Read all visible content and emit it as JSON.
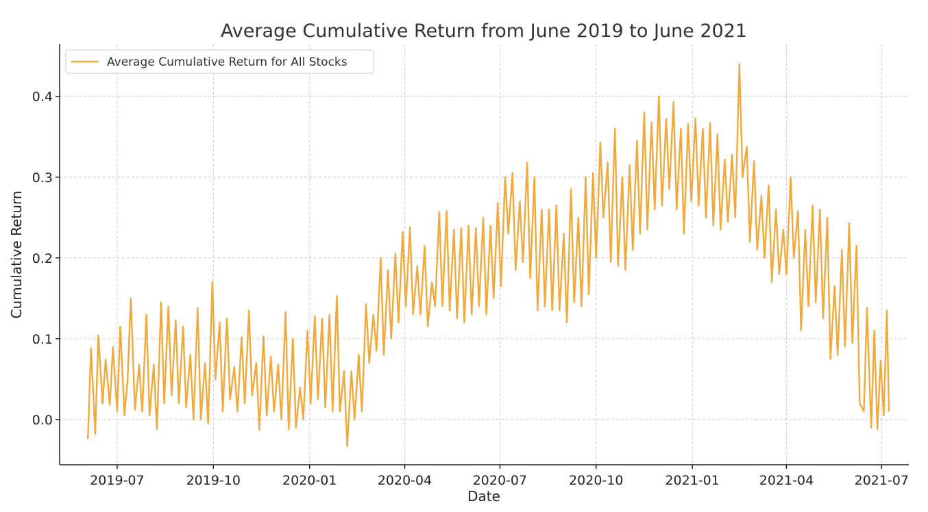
{
  "chart_data": {
    "type": "line",
    "title": "Average Cumulative Return from June 2019 to June 2021",
    "xlabel": "Date",
    "ylabel": "Cumulative Return",
    "x_ticks": [
      "2019-07",
      "2019-10",
      "2020-01",
      "2020-04",
      "2020-07",
      "2020-10",
      "2021-01",
      "2021-04",
      "2021-07"
    ],
    "x_tick_dates": [
      "2019-07-01",
      "2019-10-01",
      "2020-01-01",
      "2020-04-01",
      "2020-07-01",
      "2020-10-01",
      "2021-01-01",
      "2021-04-01",
      "2021-07-01"
    ],
    "y_ticks": [
      0.0,
      0.1,
      0.2,
      0.3,
      0.4
    ],
    "y_tick_labels": [
      "0.0",
      "0.1",
      "0.2",
      "0.3",
      "0.4"
    ],
    "xlim": [
      "2019-05-07",
      "2021-07-27"
    ],
    "ylim": [
      -0.056,
      0.465
    ],
    "grid": true,
    "legend_position": "top-left",
    "series": [
      {
        "name": "Average Cumulative Return for All Stocks",
        "color": "#f2a93b",
        "points": [
          [
            "2019-06-03",
            -0.024
          ],
          [
            "2019-06-06",
            0.088
          ],
          [
            "2019-06-10",
            -0.018
          ],
          [
            "2019-06-13",
            0.104
          ],
          [
            "2019-06-17",
            0.02
          ],
          [
            "2019-06-20",
            0.074
          ],
          [
            "2019-06-24",
            0.018
          ],
          [
            "2019-06-27",
            0.09
          ],
          [
            "2019-07-01",
            0.01
          ],
          [
            "2019-07-04",
            0.115
          ],
          [
            "2019-07-08",
            0.005
          ],
          [
            "2019-07-11",
            0.05
          ],
          [
            "2019-07-14",
            0.15
          ],
          [
            "2019-07-18",
            0.012
          ],
          [
            "2019-07-22",
            0.068
          ],
          [
            "2019-07-25",
            0.01
          ],
          [
            "2019-07-29",
            0.13
          ],
          [
            "2019-08-01",
            0.005
          ],
          [
            "2019-08-05",
            0.068
          ],
          [
            "2019-08-08",
            -0.012
          ],
          [
            "2019-08-12",
            0.145
          ],
          [
            "2019-08-15",
            0.02
          ],
          [
            "2019-08-19",
            0.14
          ],
          [
            "2019-08-22",
            0.03
          ],
          [
            "2019-08-26",
            0.123
          ],
          [
            "2019-08-29",
            0.02
          ],
          [
            "2019-09-02",
            0.115
          ],
          [
            "2019-09-05",
            0.015
          ],
          [
            "2019-09-09",
            0.08
          ],
          [
            "2019-09-12",
            0.0
          ],
          [
            "2019-09-16",
            0.138
          ],
          [
            "2019-09-19",
            0.0
          ],
          [
            "2019-09-23",
            0.07
          ],
          [
            "2019-09-26",
            -0.005
          ],
          [
            "2019-09-30",
            0.17
          ],
          [
            "2019-10-03",
            0.05
          ],
          [
            "2019-10-07",
            0.12
          ],
          [
            "2019-10-10",
            0.01
          ],
          [
            "2019-10-14",
            0.125
          ],
          [
            "2019-10-17",
            0.025
          ],
          [
            "2019-10-21",
            0.065
          ],
          [
            "2019-10-24",
            0.01
          ],
          [
            "2019-10-28",
            0.102
          ],
          [
            "2019-10-31",
            0.02
          ],
          [
            "2019-11-04",
            0.135
          ],
          [
            "2019-11-07",
            0.03
          ],
          [
            "2019-11-11",
            0.07
          ],
          [
            "2019-11-14",
            -0.013
          ],
          [
            "2019-11-18",
            0.103
          ],
          [
            "2019-11-21",
            0.005
          ],
          [
            "2019-11-25",
            0.078
          ],
          [
            "2019-11-28",
            0.01
          ],
          [
            "2019-12-02",
            0.068
          ],
          [
            "2019-12-05",
            0.0
          ],
          [
            "2019-12-09",
            0.133
          ],
          [
            "2019-12-12",
            -0.012
          ],
          [
            "2019-12-16",
            0.1
          ],
          [
            "2019-12-19",
            -0.01
          ],
          [
            "2019-12-23",
            0.04
          ],
          [
            "2019-12-26",
            0.0
          ],
          [
            "2019-12-30",
            0.11
          ],
          [
            "2020-01-02",
            0.02
          ],
          [
            "2020-01-06",
            0.128
          ],
          [
            "2020-01-09",
            0.025
          ],
          [
            "2020-01-13",
            0.125
          ],
          [
            "2020-01-16",
            0.015
          ],
          [
            "2020-01-20",
            0.13
          ],
          [
            "2020-01-23",
            0.01
          ],
          [
            "2020-01-27",
            0.153
          ],
          [
            "2020-01-30",
            0.01
          ],
          [
            "2020-02-03",
            0.06
          ],
          [
            "2020-02-06",
            -0.033
          ],
          [
            "2020-02-10",
            0.06
          ],
          [
            "2020-02-13",
            0.0
          ],
          [
            "2020-02-17",
            0.08
          ],
          [
            "2020-02-20",
            0.01
          ],
          [
            "2020-02-24",
            0.143
          ],
          [
            "2020-02-27",
            0.07
          ],
          [
            "2020-03-02",
            0.13
          ],
          [
            "2020-03-05",
            0.085
          ],
          [
            "2020-03-09",
            0.2
          ],
          [
            "2020-03-12",
            0.08
          ],
          [
            "2020-03-16",
            0.185
          ],
          [
            "2020-03-19",
            0.1
          ],
          [
            "2020-03-23",
            0.205
          ],
          [
            "2020-03-26",
            0.12
          ],
          [
            "2020-03-30",
            0.232
          ],
          [
            "2020-04-02",
            0.14
          ],
          [
            "2020-04-06",
            0.238
          ],
          [
            "2020-04-09",
            0.13
          ],
          [
            "2020-04-13",
            0.19
          ],
          [
            "2020-04-16",
            0.13
          ],
          [
            "2020-04-20",
            0.215
          ],
          [
            "2020-04-23",
            0.115
          ],
          [
            "2020-04-27",
            0.17
          ],
          [
            "2020-04-30",
            0.14
          ],
          [
            "2020-05-04",
            0.257
          ],
          [
            "2020-05-07",
            0.14
          ],
          [
            "2020-05-11",
            0.258
          ],
          [
            "2020-05-14",
            0.135
          ],
          [
            "2020-05-18",
            0.235
          ],
          [
            "2020-05-21",
            0.125
          ],
          [
            "2020-05-25",
            0.237
          ],
          [
            "2020-05-28",
            0.12
          ],
          [
            "2020-06-01",
            0.24
          ],
          [
            "2020-06-04",
            0.13
          ],
          [
            "2020-06-08",
            0.237
          ],
          [
            "2020-06-11",
            0.14
          ],
          [
            "2020-06-15",
            0.25
          ],
          [
            "2020-06-18",
            0.13
          ],
          [
            "2020-06-22",
            0.24
          ],
          [
            "2020-06-25",
            0.15
          ],
          [
            "2020-06-29",
            0.268
          ],
          [
            "2020-07-02",
            0.165
          ],
          [
            "2020-07-06",
            0.3
          ],
          [
            "2020-07-09",
            0.23
          ],
          [
            "2020-07-13",
            0.305
          ],
          [
            "2020-07-16",
            0.185
          ],
          [
            "2020-07-20",
            0.27
          ],
          [
            "2020-07-23",
            0.195
          ],
          [
            "2020-07-27",
            0.318
          ],
          [
            "2020-07-30",
            0.175
          ],
          [
            "2020-08-03",
            0.3
          ],
          [
            "2020-08-06",
            0.135
          ],
          [
            "2020-08-10",
            0.26
          ],
          [
            "2020-08-13",
            0.14
          ],
          [
            "2020-08-17",
            0.26
          ],
          [
            "2020-08-20",
            0.135
          ],
          [
            "2020-08-24",
            0.265
          ],
          [
            "2020-08-27",
            0.135
          ],
          [
            "2020-08-31",
            0.23
          ],
          [
            "2020-09-03",
            0.12
          ],
          [
            "2020-09-07",
            0.285
          ],
          [
            "2020-09-10",
            0.145
          ],
          [
            "2020-09-14",
            0.25
          ],
          [
            "2020-09-17",
            0.14
          ],
          [
            "2020-09-21",
            0.3
          ],
          [
            "2020-09-24",
            0.155
          ],
          [
            "2020-09-28",
            0.305
          ],
          [
            "2020-10-01",
            0.2
          ],
          [
            "2020-10-05",
            0.343
          ],
          [
            "2020-10-08",
            0.25
          ],
          [
            "2020-10-12",
            0.318
          ],
          [
            "2020-10-15",
            0.195
          ],
          [
            "2020-10-19",
            0.36
          ],
          [
            "2020-10-22",
            0.19
          ],
          [
            "2020-10-26",
            0.3
          ],
          [
            "2020-10-29",
            0.185
          ],
          [
            "2020-11-02",
            0.315
          ],
          [
            "2020-11-05",
            0.21
          ],
          [
            "2020-11-09",
            0.345
          ],
          [
            "2020-11-12",
            0.23
          ],
          [
            "2020-11-16",
            0.38
          ],
          [
            "2020-11-19",
            0.235
          ],
          [
            "2020-11-23",
            0.368
          ],
          [
            "2020-11-26",
            0.26
          ],
          [
            "2020-11-30",
            0.4
          ],
          [
            "2020-12-03",
            0.265
          ],
          [
            "2020-12-07",
            0.372
          ],
          [
            "2020-12-10",
            0.285
          ],
          [
            "2020-12-14",
            0.393
          ],
          [
            "2020-12-17",
            0.26
          ],
          [
            "2020-12-21",
            0.36
          ],
          [
            "2020-12-24",
            0.23
          ],
          [
            "2020-12-28",
            0.366
          ],
          [
            "2020-12-31",
            0.27
          ],
          [
            "2021-01-04",
            0.373
          ],
          [
            "2021-01-07",
            0.265
          ],
          [
            "2021-01-11",
            0.36
          ],
          [
            "2021-01-14",
            0.25
          ],
          [
            "2021-01-18",
            0.367
          ],
          [
            "2021-01-21",
            0.24
          ],
          [
            "2021-01-25",
            0.353
          ],
          [
            "2021-01-28",
            0.235
          ],
          [
            "2021-02-01",
            0.322
          ],
          [
            "2021-02-04",
            0.245
          ],
          [
            "2021-02-08",
            0.328
          ],
          [
            "2021-02-11",
            0.25
          ],
          [
            "2021-02-15",
            0.44
          ],
          [
            "2021-02-18",
            0.3
          ],
          [
            "2021-02-22",
            0.338
          ],
          [
            "2021-02-25",
            0.22
          ],
          [
            "2021-03-01",
            0.32
          ],
          [
            "2021-03-04",
            0.21
          ],
          [
            "2021-03-08",
            0.277
          ],
          [
            "2021-03-11",
            0.2
          ],
          [
            "2021-03-15",
            0.29
          ],
          [
            "2021-03-18",
            0.17
          ],
          [
            "2021-03-22",
            0.26
          ],
          [
            "2021-03-25",
            0.18
          ],
          [
            "2021-03-29",
            0.235
          ],
          [
            "2021-04-01",
            0.18
          ],
          [
            "2021-04-05",
            0.3
          ],
          [
            "2021-04-08",
            0.2
          ],
          [
            "2021-04-12",
            0.258
          ],
          [
            "2021-04-15",
            0.11
          ],
          [
            "2021-04-19",
            0.235
          ],
          [
            "2021-04-22",
            0.14
          ],
          [
            "2021-04-26",
            0.265
          ],
          [
            "2021-04-29",
            0.145
          ],
          [
            "2021-05-03",
            0.26
          ],
          [
            "2021-05-06",
            0.125
          ],
          [
            "2021-05-10",
            0.25
          ],
          [
            "2021-05-13",
            0.075
          ],
          [
            "2021-05-17",
            0.165
          ],
          [
            "2021-05-20",
            0.08
          ],
          [
            "2021-05-24",
            0.21
          ],
          [
            "2021-05-27",
            0.09
          ],
          [
            "2021-05-31",
            0.243
          ],
          [
            "2021-06-03",
            0.095
          ],
          [
            "2021-06-07",
            0.215
          ],
          [
            "2021-06-10",
            0.02
          ],
          [
            "2021-06-14",
            0.01
          ],
          [
            "2021-06-17",
            0.138
          ],
          [
            "2021-06-21",
            -0.01
          ],
          [
            "2021-06-24",
            0.11
          ],
          [
            "2021-06-27",
            -0.012
          ],
          [
            "2021-06-30",
            0.073
          ],
          [
            "2021-07-03",
            0.005
          ],
          [
            "2021-07-06",
            0.135
          ],
          [
            "2021-07-08",
            0.01
          ]
        ]
      }
    ]
  }
}
